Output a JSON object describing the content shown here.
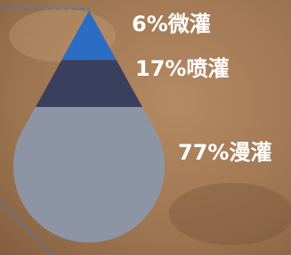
{
  "chart_data": {
    "type": "drop",
    "values": [
      6,
      17,
      77
    ],
    "value_labels": [
      "6%微灌",
      "17%喷灌",
      "77%漫灌"
    ],
    "colors": [
      "#2b6cc4",
      "#3b3f5e",
      "#8d95a5"
    ]
  }
}
